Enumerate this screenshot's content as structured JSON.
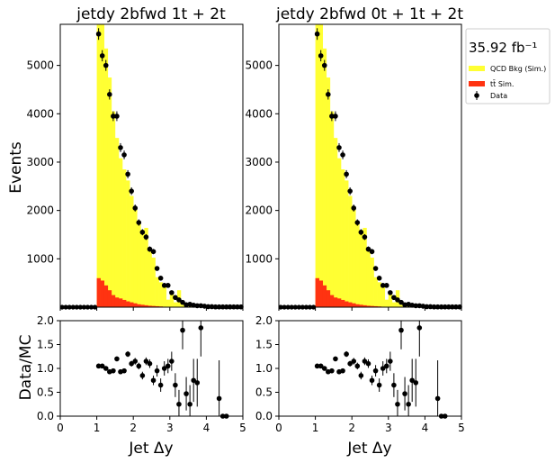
{
  "figure": {
    "ylabel_main": "Events",
    "ylabel_ratio": "Data/MC",
    "xlabel": "Jet Δy",
    "luminosity": "35.92 fb⁻¹",
    "legend": [
      {
        "label": "QCD Bkg (Sim.)",
        "color": "#ffff33",
        "kind": "fill"
      },
      {
        "label": "tt̄ Sim.",
        "color": "#ff3311",
        "kind": "fill"
      },
      {
        "label": "Data",
        "color": "#000000",
        "kind": "marker"
      }
    ]
  },
  "chart_data": [
    {
      "type": "bar",
      "title": "jetdy  2bfwd 1t + 2t",
      "xlabel": "Jet Δy",
      "ylabel": "Events",
      "xlim": [
        0,
        5
      ],
      "ylim": [
        0,
        5850
      ],
      "yticks": [
        1000,
        2000,
        3000,
        4000,
        5000
      ],
      "xticks": [
        0,
        1,
        2,
        3,
        4,
        5
      ],
      "bin_width": 0.1,
      "bin_edges_start": 1.0,
      "series": [
        {
          "name": "QCD Bkg (Sim.)",
          "stacked": true,
          "values": [
            5550,
            5300,
            4900,
            4400,
            3800,
            3300,
            2900,
            2700,
            2500,
            2200,
            1950,
            1700,
            1550,
            1600,
            1150,
            1000,
            600,
            500,
            400,
            150,
            300,
            100,
            350,
            50,
            30,
            20,
            10,
            5,
            5,
            0,
            0,
            0,
            0,
            0,
            0,
            0,
            0,
            0,
            0,
            0
          ]
        },
        {
          "name": "tt̄ Sim.",
          "stacked": true,
          "values": [
            600,
            550,
            450,
            350,
            250,
            200,
            180,
            150,
            120,
            100,
            80,
            60,
            50,
            40,
            30,
            25,
            20,
            15,
            10,
            5,
            5,
            0,
            0,
            0,
            0,
            0,
            0,
            0,
            0,
            0,
            0,
            0,
            0,
            0,
            0,
            0,
            0,
            0,
            0,
            0
          ]
        },
        {
          "name": "Data",
          "type": "errorbar",
          "x": [
            1.05,
            1.15,
            1.25,
            1.35,
            1.45,
            1.55,
            1.65,
            1.75,
            1.85,
            1.95,
            2.05,
            2.15,
            2.25,
            2.35,
            2.45,
            2.55,
            2.65,
            2.75,
            2.85,
            2.95,
            3.05,
            3.15,
            3.25,
            3.35,
            3.45,
            3.55,
            3.65,
            3.75,
            3.85,
            3.95,
            4.05,
            4.15,
            4.25,
            4.35,
            4.45,
            4.55,
            4.65,
            4.75,
            4.85,
            4.95
          ],
          "y": [
            5650,
            5200,
            5000,
            4400,
            3950,
            3950,
            3300,
            3150,
            2750,
            2400,
            2050,
            1750,
            1550,
            1450,
            1200,
            1150,
            800,
            600,
            450,
            450,
            300,
            200,
            150,
            100,
            50,
            60,
            40,
            30,
            30,
            20,
            10,
            10,
            5,
            5,
            5,
            5,
            5,
            5,
            5,
            5
          ]
        }
      ]
    },
    {
      "type": "bar",
      "title": "jetdy  2bfwd 0t + 1t + 2t",
      "xlabel": "Jet Δy",
      "ylabel": "",
      "xlim": [
        0,
        5
      ],
      "ylim": [
        0,
        5850
      ],
      "yticks": [
        1000,
        2000,
        3000,
        4000,
        5000
      ],
      "xticks": [
        0,
        1,
        2,
        3,
        4,
        5
      ],
      "bin_width": 0.1,
      "bin_edges_start": 1.0,
      "series": [
        {
          "name": "QCD Bkg (Sim.)",
          "stacked": true,
          "values": [
            5550,
            5300,
            4900,
            4400,
            3800,
            3300,
            2900,
            2700,
            2500,
            2200,
            1950,
            1700,
            1550,
            1600,
            1150,
            1000,
            600,
            500,
            400,
            150,
            300,
            100,
            350,
            50,
            30,
            20,
            10,
            5,
            5,
            0,
            0,
            0,
            0,
            0,
            0,
            0,
            0,
            0,
            0,
            0
          ]
        },
        {
          "name": "tt̄ Sim.",
          "stacked": true,
          "values": [
            600,
            550,
            450,
            350,
            250,
            200,
            180,
            150,
            120,
            100,
            80,
            60,
            50,
            40,
            30,
            25,
            20,
            15,
            10,
            5,
            5,
            0,
            0,
            0,
            0,
            0,
            0,
            0,
            0,
            0,
            0,
            0,
            0,
            0,
            0,
            0,
            0,
            0,
            0,
            0
          ]
        },
        {
          "name": "Data",
          "type": "errorbar",
          "x": [
            1.05,
            1.15,
            1.25,
            1.35,
            1.45,
            1.55,
            1.65,
            1.75,
            1.85,
            1.95,
            2.05,
            2.15,
            2.25,
            2.35,
            2.45,
            2.55,
            2.65,
            2.75,
            2.85,
            2.95,
            3.05,
            3.15,
            3.25,
            3.35,
            3.45,
            3.55,
            3.65,
            3.75,
            3.85,
            3.95,
            4.05,
            4.15,
            4.25,
            4.35,
            4.45,
            4.55,
            4.65,
            4.75,
            4.85,
            4.95
          ],
          "y": [
            5650,
            5200,
            5000,
            4400,
            3950,
            3950,
            3300,
            3150,
            2750,
            2400,
            2050,
            1750,
            1550,
            1450,
            1200,
            1150,
            800,
            600,
            450,
            450,
            300,
            200,
            150,
            100,
            50,
            60,
            40,
            30,
            30,
            20,
            10,
            10,
            5,
            5,
            5,
            5,
            5,
            5,
            5,
            5
          ]
        }
      ]
    },
    {
      "type": "scatter",
      "title": "",
      "xlabel": "Jet Δy",
      "ylabel": "Data/MC",
      "xlim": [
        0,
        5
      ],
      "ylim": [
        0,
        2
      ],
      "yticks": [
        0.0,
        0.5,
        1.0,
        1.5,
        2.0
      ],
      "xticks": [
        0,
        1,
        2,
        3,
        4,
        5
      ],
      "x": [
        1.05,
        1.15,
        1.25,
        1.35,
        1.45,
        1.55,
        1.65,
        1.75,
        1.85,
        1.95,
        2.05,
        2.15,
        2.25,
        2.35,
        2.45,
        2.55,
        2.65,
        2.75,
        2.85,
        2.95,
        3.05,
        3.15,
        3.25,
        3.35,
        3.45,
        3.55,
        3.65,
        3.75,
        3.85,
        4.35,
        4.45,
        4.55
      ],
      "y": [
        1.05,
        1.05,
        1.0,
        0.93,
        0.95,
        1.2,
        0.93,
        0.95,
        1.3,
        1.1,
        1.15,
        1.05,
        0.85,
        1.15,
        1.1,
        0.75,
        0.95,
        0.65,
        1.0,
        1.05,
        1.15,
        0.65,
        0.25,
        1.8,
        0.47,
        0.25,
        0.75,
        0.7,
        1.85,
        0.37,
        0.0,
        0.0
      ],
      "yerr": [
        0.04,
        0.04,
        0.04,
        0.04,
        0.05,
        0.05,
        0.05,
        0.05,
        0.06,
        0.06,
        0.07,
        0.07,
        0.08,
        0.08,
        0.09,
        0.1,
        0.12,
        0.14,
        0.15,
        0.15,
        0.2,
        0.25,
        0.3,
        0.4,
        0.35,
        0.4,
        0.45,
        0.5,
        0.6,
        0.8,
        0.0,
        0.0
      ]
    },
    {
      "type": "scatter",
      "title": "",
      "xlabel": "Jet Δy",
      "ylabel": "",
      "xlim": [
        0,
        5
      ],
      "ylim": [
        0,
        2
      ],
      "yticks": [
        0.0,
        0.5,
        1.0,
        1.5,
        2.0
      ],
      "xticks": [
        0,
        1,
        2,
        3,
        4,
        5
      ],
      "x": [
        1.05,
        1.15,
        1.25,
        1.35,
        1.45,
        1.55,
        1.65,
        1.75,
        1.85,
        1.95,
        2.05,
        2.15,
        2.25,
        2.35,
        2.45,
        2.55,
        2.65,
        2.75,
        2.85,
        2.95,
        3.05,
        3.15,
        3.25,
        3.35,
        3.45,
        3.55,
        3.65,
        3.75,
        3.85,
        4.35,
        4.45,
        4.55
      ],
      "y": [
        1.05,
        1.05,
        1.0,
        0.93,
        0.95,
        1.2,
        0.93,
        0.95,
        1.3,
        1.1,
        1.15,
        1.05,
        0.85,
        1.15,
        1.1,
        0.75,
        0.95,
        0.65,
        1.0,
        1.05,
        1.15,
        0.65,
        0.25,
        1.8,
        0.47,
        0.25,
        0.75,
        0.7,
        1.85,
        0.37,
        0.0,
        0.0
      ],
      "yerr": [
        0.04,
        0.04,
        0.04,
        0.04,
        0.05,
        0.05,
        0.05,
        0.05,
        0.06,
        0.06,
        0.07,
        0.07,
        0.08,
        0.08,
        0.09,
        0.1,
        0.12,
        0.14,
        0.15,
        0.15,
        0.2,
        0.25,
        0.3,
        0.4,
        0.35,
        0.4,
        0.45,
        0.5,
        0.6,
        0.8,
        0.0,
        0.0
      ]
    }
  ]
}
